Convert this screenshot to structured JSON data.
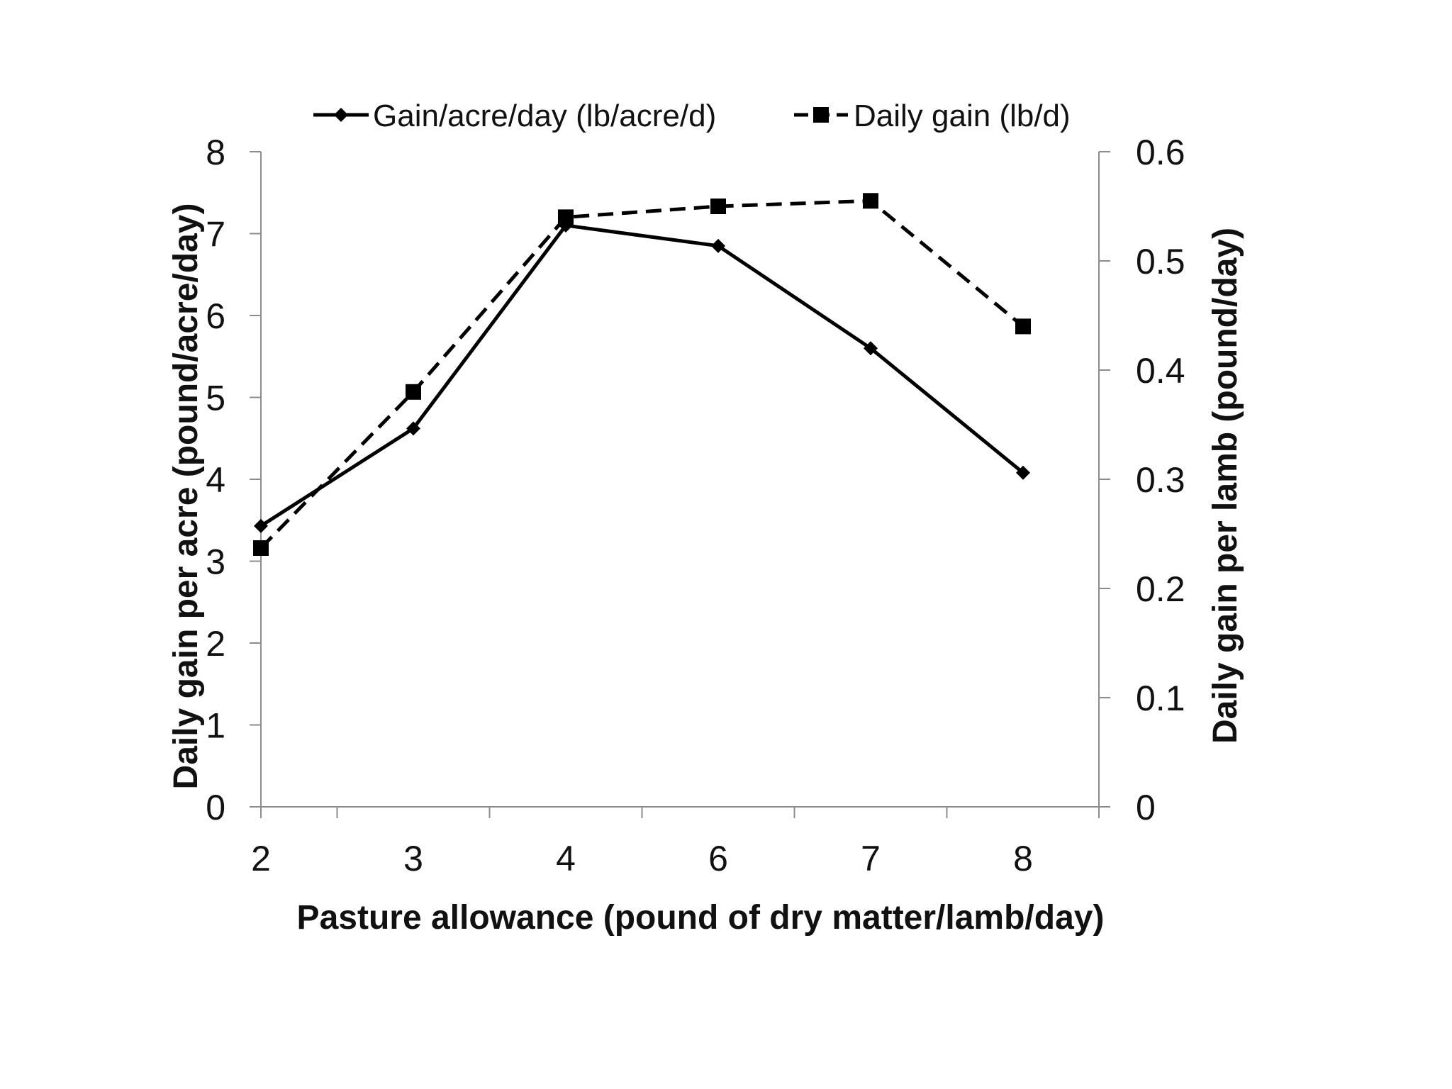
{
  "chart_data": {
    "type": "line",
    "title": "",
    "categories": [
      "2",
      "3",
      "4",
      "6",
      "7",
      "8"
    ],
    "xlabel": "Pasture allowance (pound of dry matter/lamb/day)",
    "ylabel": "Daily gain per acre (pound/acre/day)",
    "y2label": "Daily gain per lamb (pound/day)",
    "ylim": [
      0,
      8
    ],
    "y2lim": [
      0,
      0.6
    ],
    "yticks": [
      "0",
      "1",
      "2",
      "3",
      "4",
      "5",
      "6",
      "7",
      "8"
    ],
    "y2ticks": [
      "0",
      "0.1",
      "0.2",
      "0.3",
      "0.4",
      "0.5",
      "0.6"
    ],
    "grid": false,
    "legend_position": "top",
    "series": [
      {
        "name": "Gain/acre/day (lb/acre/d)",
        "axis": "left",
        "marker": "diamond",
        "line_style": "solid",
        "color": "#000000",
        "values": [
          3.43,
          4.62,
          7.1,
          6.85,
          5.6,
          4.08
        ]
      },
      {
        "name": "Daily gain (lb/d)",
        "axis": "right",
        "marker": "square",
        "line_style": "dashed",
        "color": "#000000",
        "values": [
          0.237,
          0.38,
          0.54,
          0.55,
          0.555,
          0.44
        ]
      }
    ]
  }
}
